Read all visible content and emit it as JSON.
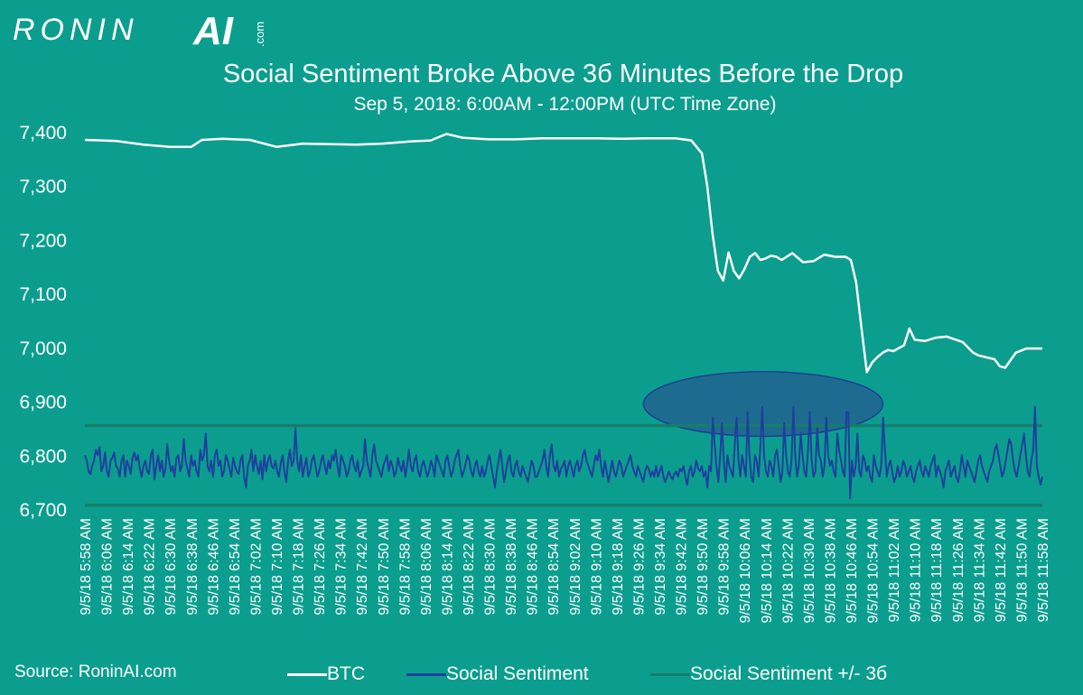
{
  "logo": {
    "name": "RONIN",
    "ai": "AI",
    "com": ".com"
  },
  "footer": {
    "source": "Source: RoninAI.com"
  },
  "chart_data": {
    "type": "line",
    "title": "Social Sentiment Broke Above 3б Minutes Before the Drop",
    "subtitle": "Sep 5, 2018: 6:00AM - 12:00PM  (UTC Time Zone)",
    "ylim": [
      6700,
      7400
    ],
    "yticks": [
      6700,
      6800,
      6900,
      7000,
      7100,
      7200,
      7300,
      7400
    ],
    "ytick_labels": [
      "6,700",
      "6,800",
      "6,900",
      "7,000",
      "7,100",
      "7,200",
      "7,300",
      "7,400"
    ],
    "grid": false,
    "legend": "bottom",
    "x_range": [
      "5:58",
      "11:58"
    ],
    "x_ticks": [
      "9/5/18 5:58 AM",
      "9/5/18 6:06 AM",
      "9/5/18 6:14 AM",
      "9/5/18 6:22 AM",
      "9/5/18 6:30 AM",
      "9/5/18 6:38 AM",
      "9/5/18 6:46 AM",
      "9/5/18 6:54 AM",
      "9/5/18 7:02 AM",
      "9/5/18 7:10 AM",
      "9/5/18 7:18 AM",
      "9/5/18 7:26 AM",
      "9/5/18 7:34 AM",
      "9/5/18 7:42 AM",
      "9/5/18 7:50 AM",
      "9/5/18 7:58 AM",
      "9/5/18 8:06 AM",
      "9/5/18 8:14 AM",
      "9/5/18 8:22 AM",
      "9/5/18 8:30 AM",
      "9/5/18 8:38 AM",
      "9/5/18 8:46 AM",
      "9/5/18 8:54 AM",
      "9/5/18 9:02 AM",
      "9/5/18 9:10 AM",
      "9/5/18 9:18 AM",
      "9/5/18 9:26 AM",
      "9/5/18 9:34 AM",
      "9/5/18 9:42 AM",
      "9/5/18 9:50 AM",
      "9/5/18 9:58 AM",
      "9/5/18 10:06 AM",
      "9/5/18 10:14 AM",
      "9/5/18 10:22 AM",
      "9/5/18 10:30 AM",
      "9/5/18 10:38 AM",
      "9/5/18 10:46 AM",
      "9/5/18 10:54 AM",
      "9/5/18 11:02 AM",
      "9/5/18 11:10 AM",
      "9/5/18 11:18 AM",
      "9/5/18 11:26 AM",
      "9/5/18 11:34 AM",
      "9/5/18 11:42 AM",
      "9/5/18 11:50 AM",
      "9/5/18 11:58 AM"
    ],
    "series": [
      {
        "name": "BTC",
        "color": "#ffffff",
        "x": [
          "5:58",
          "6:10",
          "6:20",
          "6:30",
          "6:38",
          "6:42",
          "6:50",
          "7:00",
          "7:10",
          "7:20",
          "7:30",
          "7:40",
          "7:50",
          "8:00",
          "8:08",
          "8:14",
          "8:20",
          "8:30",
          "8:40",
          "8:50",
          "9:00",
          "9:10",
          "9:20",
          "9:30",
          "9:40",
          "9:46",
          "9:50",
          "9:52",
          "9:54",
          "9:56",
          "9:58",
          "10:00",
          "10:02",
          "10:04",
          "10:06",
          "10:08",
          "10:10",
          "10:12",
          "10:14",
          "10:16",
          "10:18",
          "10:20",
          "10:24",
          "10:28",
          "10:32",
          "10:36",
          "10:40",
          "10:44",
          "10:46",
          "10:48",
          "10:50",
          "10:52",
          "10:54",
          "10:56",
          "10:58",
          "11:00",
          "11:02",
          "11:06",
          "11:08",
          "11:10",
          "11:14",
          "11:18",
          "11:22",
          "11:28",
          "11:32",
          "11:34",
          "11:40",
          "11:42",
          "11:44",
          "11:48",
          "11:52",
          "11:56",
          "11:58"
        ],
        "y": [
          7385,
          7383,
          7376,
          7372,
          7372,
          7385,
          7387,
          7385,
          7372,
          7378,
          7377,
          7376,
          7378,
          7382,
          7384,
          7396,
          7389,
          7386,
          7386,
          7388,
          7388,
          7388,
          7387,
          7388,
          7388,
          7384,
          7360,
          7300,
          7210,
          7142,
          7124,
          7176,
          7142,
          7128,
          7145,
          7168,
          7175,
          7162,
          7165,
          7170,
          7168,
          7162,
          7175,
          7158,
          7160,
          7172,
          7168,
          7168,
          7162,
          7120,
          7035,
          6954,
          6972,
          6982,
          6990,
          6995,
          6993,
          7004,
          7035,
          7014,
          7012,
          7018,
          7020,
          7010,
          6990,
          6985,
          6978,
          6965,
          6962,
          6990,
          6998,
          6998,
          6998
        ]
      },
      {
        "name": "Social Sentiment",
        "color": "#1f3f9e",
        "y": [
          6800,
          6790,
          6770,
          6765,
          6780,
          6790,
          6810,
          6800,
          6815,
          6770,
          6780,
          6805,
          6770,
          6760,
          6790,
          6795,
          6805,
          6780,
          6775,
          6760,
          6790,
          6800,
          6760,
          6790,
          6780,
          6765,
          6795,
          6805,
          6790,
          6800,
          6775,
          6760,
          6780,
          6790,
          6770,
          6765,
          6800,
          6810,
          6755,
          6780,
          6800,
          6770,
          6790,
          6760,
          6775,
          6820,
          6790,
          6770,
          6780,
          6760,
          6795,
          6800,
          6770,
          6780,
          6830,
          6790,
          6775,
          6760,
          6800,
          6780,
          6790,
          6770,
          6760,
          6810,
          6790,
          6800,
          6840,
          6780,
          6770,
          6790,
          6760,
          6800,
          6810,
          6780,
          6790,
          6760,
          6770,
          6800,
          6790,
          6775,
          6760,
          6795,
          6780,
          6770,
          6765,
          6790,
          6800,
          6760,
          6740,
          6780,
          6790,
          6810,
          6770,
          6800,
          6780,
          6765,
          6790,
          6755,
          6800,
          6770,
          6790,
          6800,
          6780,
          6775,
          6790,
          6770,
          6760,
          6785,
          6800,
          6770,
          6750,
          6790,
          6810,
          6780,
          6790,
          6850,
          6790,
          6770,
          6800,
          6760,
          6780,
          6795,
          6760,
          6770,
          6790,
          6800,
          6780,
          6760,
          6770,
          6790,
          6800,
          6780,
          6765,
          6790,
          6775,
          6800,
          6790,
          6810,
          6780,
          6760,
          6800,
          6790,
          6780,
          6760,
          6770,
          6790,
          6800,
          6780,
          6770,
          6790,
          6760,
          6770,
          6780,
          6830,
          6790,
          6775,
          6760,
          6800,
          6820,
          6790,
          6780,
          6770,
          6760,
          6780,
          6790,
          6800,
          6770,
          6790,
          6780,
          6760,
          6770,
          6795,
          6780,
          6770,
          6790,
          6760,
          6780,
          6810,
          6780,
          6770,
          6790,
          6800,
          6770,
          6760,
          6780,
          6790,
          6775,
          6760,
          6770,
          6790,
          6780,
          6760,
          6800,
          6790,
          6780,
          6770,
          6760,
          6790,
          6800,
          6780,
          6760,
          6770,
          6790,
          6800,
          6810,
          6780,
          6760,
          6770,
          6785,
          6800,
          6790,
          6770,
          6760,
          6780,
          6790,
          6770,
          6760,
          6780,
          6760,
          6770,
          6790,
          6800,
          6780,
          6760,
          6740,
          6770,
          6790,
          6810,
          6780,
          6750,
          6770,
          6790,
          6800,
          6770,
          6760,
          6780,
          6790,
          6770,
          6760,
          6780,
          6770,
          6760,
          6750,
          6770,
          6790,
          6780,
          6760,
          6760,
          6770,
          6780,
          6790,
          6810,
          6780,
          6760,
          6800,
          6820,
          6780,
          6770,
          6790,
          6760,
          6775,
          6780,
          6790,
          6760,
          6780,
          6790,
          6775,
          6760,
          6780,
          6790,
          6770,
          6780,
          6800,
          6810,
          6790,
          6780,
          6770,
          6760,
          6780,
          6800,
          6790,
          6810,
          6780,
          6760,
          6790,
          6770,
          6750,
          6770,
          6790,
          6770,
          6760,
          6775,
          6790,
          6780,
          6760,
          6770,
          6780,
          6790,
          6800,
          6780,
          6770,
          6760,
          6780,
          6770,
          6760,
          6750,
          6770,
          6780,
          6775,
          6760,
          6770,
          6760,
          6780,
          6760,
          6770,
          6780,
          6760,
          6750,
          6760,
          6770,
          6760,
          6755,
          6765,
          6770,
          6760,
          6775,
          6770,
          6780,
          6760,
          6745,
          6770,
          6780,
          6760,
          6770,
          6790,
          6775,
          6770,
          6780,
          6760,
          6770,
          6740,
          6780,
          6770,
          6870,
          6820,
          6780,
          6750,
          6800,
          6860,
          6790,
          6750,
          6800,
          6780,
          6770,
          6760,
          6820,
          6870,
          6790,
          6760,
          6800,
          6780,
          6760,
          6880,
          6800,
          6760,
          6750,
          6800,
          6790,
          6760,
          6820,
          6890,
          6800,
          6770,
          6760,
          6790,
          6780,
          6760,
          6800,
          6810,
          6780,
          6750,
          6770,
          6860,
          6800,
          6770,
          6760,
          6790,
          6890,
          6800,
          6760,
          6780,
          6840,
          6800,
          6770,
          6760,
          6810,
          6880,
          6790,
          6760,
          6770,
          6850,
          6800,
          6790,
          6760,
          6780,
          6870,
          6800,
          6780,
          6790,
          6770,
          6760,
          6840,
          6810,
          6790,
          6770,
          6760,
          6880,
          6880,
          6720,
          6790,
          6760,
          6780,
          6840,
          6770,
          6760,
          6800,
          6790,
          6770,
          6780,
          6760,
          6750,
          6800,
          6780,
          6770,
          6760,
          6780,
          6870,
          6810,
          6760,
          6780,
          6790,
          6770,
          6750,
          6760,
          6780,
          6760,
          6770,
          6790,
          6780,
          6760,
          6770,
          6780,
          6760,
          6750,
          6770,
          6780,
          6790,
          6770,
          6760,
          6780,
          6770,
          6760,
          6780,
          6790,
          6800,
          6760,
          6780,
          6770,
          6760,
          6740,
          6770,
          6780,
          6790,
          6760,
          6770,
          6780,
          6760,
          6750,
          6770,
          6800,
          6780,
          6760,
          6790,
          6780,
          6770,
          6760,
          6750,
          6770,
          6790,
          6800,
          6780,
          6770,
          6760,
          6750,
          6770,
          6780,
          6790,
          6810,
          6820,
          6800,
          6780,
          6760,
          6770,
          6790,
          6810,
          6830,
          6820,
          6790,
          6770,
          6760,
          6780,
          6800,
          6820,
          6840,
          6800,
          6770,
          6760,
          6790,
          6810,
          6890,
          6780,
          6760,
          6745,
          6760
        ]
      },
      {
        "name": "Social Sentiment +/- 3б",
        "color": "#167d6d",
        "upper": 6855,
        "lower": 6707
      }
    ],
    "annotations": [
      {
        "type": "ellipse",
        "x_range": [
          "9:28",
          "10:58"
        ],
        "y_range": [
          6835,
          6955
        ],
        "fill": "#1d6c8f",
        "stroke": "#1a3f95"
      }
    ]
  }
}
